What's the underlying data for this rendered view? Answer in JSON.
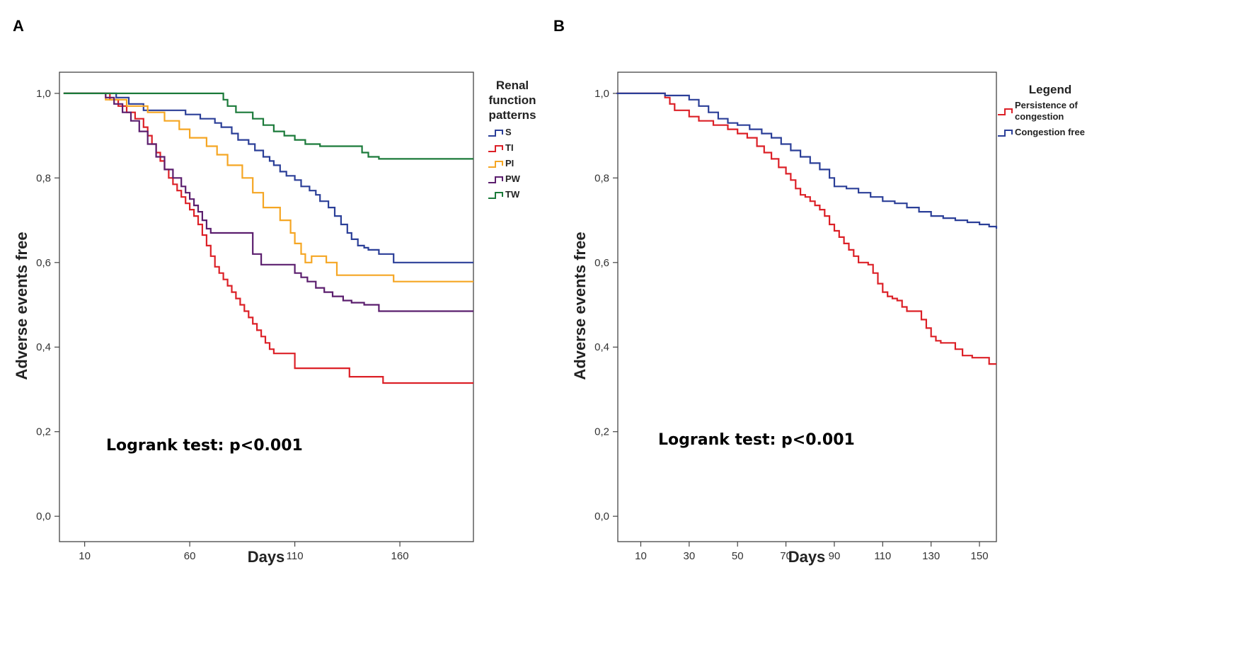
{
  "chart_data": [
    {
      "panel_label": "A",
      "type": "line",
      "step": true,
      "xlabel": "Days",
      "ylabel": "Adverse events free",
      "xlim": [
        -2,
        195
      ],
      "ylim": [
        -0.06,
        1.05
      ],
      "xticks": [
        10,
        60,
        110,
        160
      ],
      "xtick_labels": [
        "10",
        "60",
        "110",
        "160"
      ],
      "yticks": [
        0,
        0.2,
        0.4,
        0.6,
        0.8,
        1.0
      ],
      "ytick_labels": [
        "0,0",
        "0,2",
        "0,4",
        "0,6",
        "0,8",
        "1,0"
      ],
      "annotation": "Logrank test: p<0.001",
      "legend_title": [
        "Renal",
        "function",
        "patterns"
      ],
      "series": [
        {
          "name": "S",
          "color": "#2b3f98",
          "x": [
            0,
            25,
            31,
            38,
            58,
            65,
            72,
            75,
            80,
            83,
            88,
            91,
            95,
            98,
            100,
            103,
            106,
            110,
            113,
            117,
            120,
            122,
            126,
            129,
            132,
            135,
            137,
            140,
            143,
            145,
            150,
            157,
            195
          ],
          "y": [
            1.0,
            0.99,
            0.975,
            0.96,
            0.95,
            0.94,
            0.93,
            0.92,
            0.905,
            0.89,
            0.88,
            0.865,
            0.85,
            0.84,
            0.83,
            0.815,
            0.805,
            0.795,
            0.78,
            0.77,
            0.76,
            0.745,
            0.73,
            0.71,
            0.69,
            0.67,
            0.655,
            0.64,
            0.635,
            0.63,
            0.62,
            0.6,
            0.6
          ]
        },
        {
          "name": "TI",
          "color": "#dc2027",
          "x": [
            0,
            22,
            26,
            30,
            34,
            38,
            40,
            42,
            44,
            46,
            48,
            50,
            52,
            54,
            56,
            58,
            60,
            62,
            64,
            66,
            68,
            70,
            72,
            74,
            76,
            78,
            80,
            82,
            84,
            86,
            88,
            90,
            92,
            94,
            96,
            98,
            100,
            110,
            136,
            152,
            195
          ],
          "y": [
            1.0,
            0.985,
            0.97,
            0.955,
            0.94,
            0.92,
            0.9,
            0.88,
            0.86,
            0.84,
            0.82,
            0.8,
            0.785,
            0.77,
            0.755,
            0.74,
            0.725,
            0.71,
            0.69,
            0.665,
            0.64,
            0.615,
            0.59,
            0.575,
            0.56,
            0.545,
            0.53,
            0.515,
            0.5,
            0.485,
            0.47,
            0.455,
            0.44,
            0.425,
            0.41,
            0.395,
            0.385,
            0.35,
            0.33,
            0.315,
            0.315
          ]
        },
        {
          "name": "PI",
          "color": "#f5a623",
          "x": [
            0,
            20,
            30,
            40,
            48,
            55,
            60,
            68,
            73,
            78,
            85,
            90,
            95,
            103,
            108,
            110,
            113,
            115,
            118,
            125,
            130,
            133,
            137,
            157,
            195
          ],
          "y": [
            1.0,
            0.985,
            0.97,
            0.955,
            0.935,
            0.915,
            0.895,
            0.875,
            0.855,
            0.83,
            0.8,
            0.765,
            0.73,
            0.7,
            0.67,
            0.645,
            0.62,
            0.6,
            0.615,
            0.6,
            0.57,
            0.57,
            0.57,
            0.555,
            0.555
          ]
        },
        {
          "name": "PW",
          "color": "#5b1e6e",
          "x": [
            0,
            20,
            24,
            28,
            32,
            36,
            40,
            44,
            48,
            52,
            56,
            58,
            60,
            62,
            64,
            66,
            68,
            70,
            72,
            90,
            94,
            110,
            113,
            116,
            120,
            124,
            128,
            133,
            137,
            143,
            150,
            195
          ],
          "y": [
            1.0,
            0.99,
            0.975,
            0.955,
            0.935,
            0.91,
            0.88,
            0.85,
            0.82,
            0.8,
            0.78,
            0.765,
            0.75,
            0.735,
            0.72,
            0.7,
            0.68,
            0.67,
            0.67,
            0.62,
            0.595,
            0.575,
            0.565,
            0.555,
            0.54,
            0.53,
            0.52,
            0.51,
            0.505,
            0.5,
            0.485,
            0.485
          ]
        },
        {
          "name": "TW",
          "color": "#1b7a3a",
          "x": [
            0,
            76,
            78,
            82,
            90,
            95,
            100,
            105,
            110,
            115,
            122,
            142,
            145,
            150,
            195
          ],
          "y": [
            1.0,
            0.985,
            0.97,
            0.955,
            0.94,
            0.925,
            0.91,
            0.9,
            0.89,
            0.88,
            0.875,
            0.86,
            0.85,
            0.845,
            0.845
          ]
        }
      ]
    },
    {
      "panel_label": "B",
      "type": "line",
      "step": true,
      "xlabel": "Days",
      "ylabel": "Adverse events free",
      "xlim": [
        0.5,
        157
      ],
      "ylim": [
        -0.06,
        1.05
      ],
      "xticks": [
        10,
        30,
        50,
        70,
        90,
        110,
        130,
        150
      ],
      "xtick_labels": [
        "10",
        "30",
        "50",
        "70",
        "90",
        "110",
        "130",
        "150"
      ],
      "yticks": [
        0,
        0.2,
        0.4,
        0.6,
        0.8,
        1.0
      ],
      "ytick_labels": [
        "0,0",
        "0,2",
        "0,4",
        "0,6",
        "0,8",
        "1,0"
      ],
      "annotation": "Logrank test: p<0.001",
      "legend_title": [
        "Legend"
      ],
      "series": [
        {
          "name": "Persistence of congestion",
          "name_lines": [
            "Persistence of",
            "congestion"
          ],
          "color": "#dc2027",
          "x": [
            0,
            20,
            22,
            24,
            30,
            34,
            40,
            46,
            50,
            54,
            58,
            61,
            64,
            67,
            70,
            72,
            74,
            76,
            78,
            80,
            82,
            84,
            86,
            88,
            90,
            92,
            94,
            96,
            98,
            100,
            102,
            104,
            106,
            108,
            110,
            112,
            114,
            116,
            118,
            120,
            124,
            126,
            128,
            130,
            132,
            134,
            137,
            140,
            143,
            147,
            150,
            154,
            157
          ],
          "y": [
            1.0,
            0.99,
            0.975,
            0.96,
            0.945,
            0.935,
            0.925,
            0.915,
            0.905,
            0.895,
            0.875,
            0.86,
            0.845,
            0.825,
            0.81,
            0.795,
            0.775,
            0.76,
            0.755,
            0.745,
            0.735,
            0.725,
            0.71,
            0.69,
            0.675,
            0.66,
            0.645,
            0.63,
            0.615,
            0.6,
            0.6,
            0.595,
            0.575,
            0.55,
            0.53,
            0.52,
            0.515,
            0.51,
            0.495,
            0.485,
            0.485,
            0.465,
            0.445,
            0.425,
            0.415,
            0.41,
            0.41,
            0.395,
            0.38,
            0.375,
            0.375,
            0.36,
            0.36
          ]
        },
        {
          "name": "Congestion free",
          "name_lines": [
            "Congestion free"
          ],
          "color": "#2b3f98",
          "x": [
            0,
            20,
            30,
            34,
            38,
            42,
            46,
            50,
            55,
            60,
            64,
            68,
            72,
            76,
            80,
            84,
            88,
            90,
            95,
            100,
            105,
            110,
            115,
            120,
            125,
            130,
            135,
            140,
            145,
            150,
            154,
            157
          ],
          "y": [
            1.0,
            0.995,
            0.985,
            0.97,
            0.955,
            0.94,
            0.93,
            0.925,
            0.915,
            0.905,
            0.895,
            0.88,
            0.865,
            0.85,
            0.835,
            0.82,
            0.8,
            0.78,
            0.775,
            0.765,
            0.755,
            0.745,
            0.74,
            0.73,
            0.72,
            0.71,
            0.705,
            0.7,
            0.695,
            0.69,
            0.685,
            0.68
          ]
        }
      ]
    }
  ]
}
